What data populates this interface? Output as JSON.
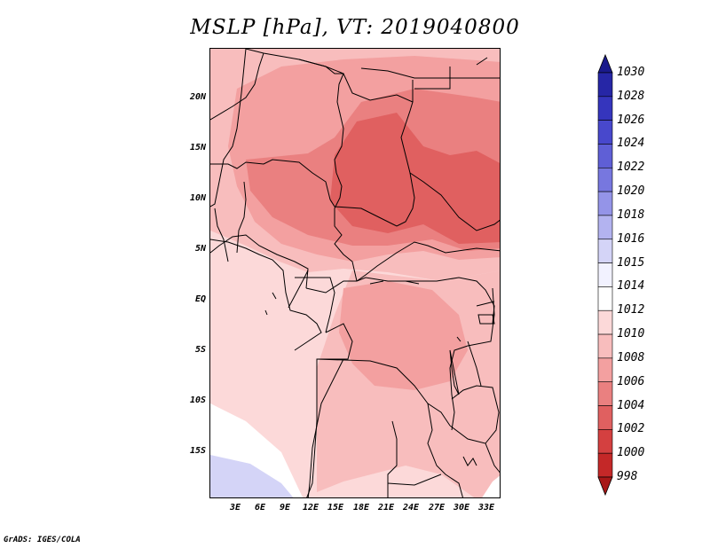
{
  "title": "MSLP [hPa], VT: 2019040800",
  "footer": "GrADS: IGES/COLA",
  "latitude_labels": [
    "20N",
    "15N",
    "10N",
    "5N",
    "EQ",
    "5S",
    "10S",
    "15S"
  ],
  "longitude_labels": [
    "3E",
    "6E",
    "9E",
    "12E",
    "15E",
    "18E",
    "21E",
    "24E",
    "27E",
    "30E",
    "33E"
  ],
  "colorbar": {
    "labels": [
      "1030",
      "1028",
      "1026",
      "1024",
      "1022",
      "1020",
      "1018",
      "1016",
      "1015",
      "1014",
      "1012",
      "1010",
      "1008",
      "1006",
      "1004",
      "1002",
      "1000",
      "998"
    ],
    "colors": [
      "#1a1a8c",
      "#2626a6",
      "#3535bd",
      "#4848cc",
      "#5f5fd6",
      "#7777df",
      "#9494e8",
      "#b3b3f0",
      "#d4d4f7",
      "#f2f2ff",
      "#ffffff",
      "#fcd9d9",
      "#f8bdbd",
      "#f3a0a0",
      "#ea8080",
      "#e06060",
      "#d44040",
      "#c42828",
      "#a81818"
    ]
  },
  "colors": {
    "p1012": "#fcd9d9",
    "p1010": "#f8bdbd",
    "p1008": "#f3a0a0",
    "p1006": "#ea8080",
    "p1004": "#e06060",
    "p1014": "#ffffff",
    "p1016": "#d4d4f7"
  }
}
